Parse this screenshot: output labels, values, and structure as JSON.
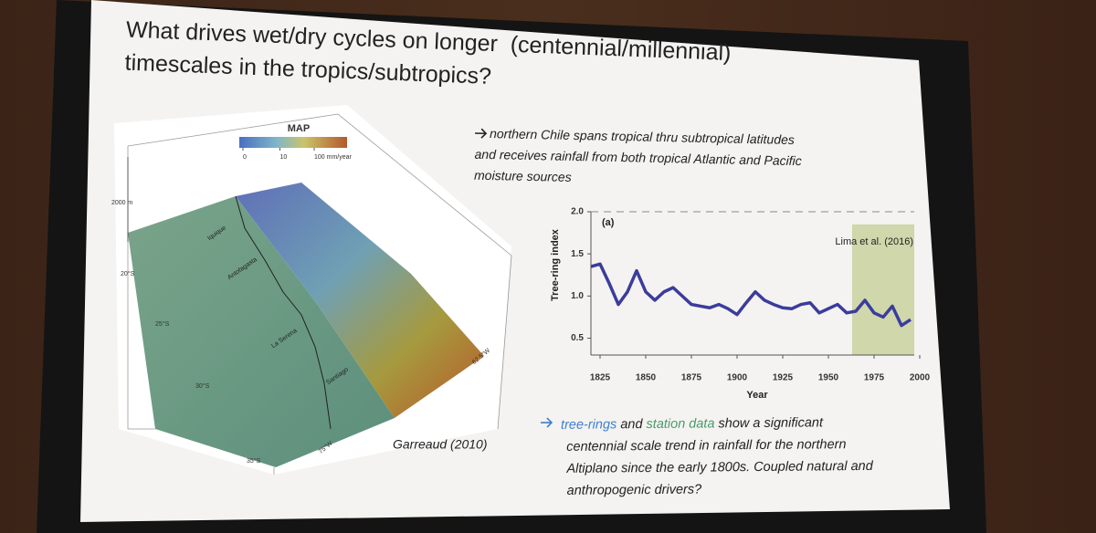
{
  "slide": {
    "title": {
      "lines": [
        "What drives wet/dry cycles on longer  (centennial/millennial)",
        "timescales in the tropics/subtropics?"
      ]
    },
    "bullet_1": {
      "lines": [
        "northern Chile spans tropical thru subtropical latitudes",
        "and receives rainfall from both tropical Atlantic and Pacific",
        "moisture sources"
      ]
    },
    "bullet_2": {
      "lines": [
        [
          {
            "text": "tree-rings",
            "color": "#3f7fd0"
          },
          {
            "text": " and ",
            "color": "#222222"
          },
          {
            "text": "station data",
            "color": "#4a9a6a"
          },
          {
            "text": " show a significant",
            "color": "#222222"
          }
        ],
        [
          {
            "text": "centennial scale trend in rainfall for the northern",
            "color": "#222222"
          }
        ],
        [
          {
            "text": "Altiplano since the early 1800s. Coupled natural and",
            "color": "#222222"
          }
        ],
        [
          {
            "text": "anthropogenic drivers?",
            "color": "#222222"
          }
        ]
      ]
    },
    "map": {
      "colorbar": {
        "title": "MAP",
        "ticks": [
          0,
          10,
          {
            "value": 100,
            "label": "100 mm/year"
          }
        ]
      },
      "elevation_label": "2000 m",
      "latitudes": [
        "20°S",
        "25°S",
        "30°S",
        "35°S"
      ],
      "longitudes": [
        "75°W",
        "62.5°W"
      ],
      "cities": [
        "Iquique",
        "Antofagasta",
        "La Serena",
        "Santiago"
      ],
      "credit": "Garreaud (2010)"
    },
    "tree_ring_chart": {
      "panel_label": "(a)",
      "source": "Lima et al. (2016)",
      "x_label": "Year",
      "y_label": "Tree-ring index",
      "xlim": [
        1820,
        1997
      ],
      "ylim": [
        0.3,
        2.0
      ],
      "xticks": [
        1825,
        1850,
        1875,
        1900,
        1925,
        1950,
        1975,
        2000
      ],
      "yticks": [
        {
          "value": 0.5,
          "label": "0.5"
        },
        {
          "value": 1,
          "label": "1.0"
        },
        {
          "value": 1.5,
          "label": "1.5"
        },
        {
          "value": 2,
          "label": "2.0"
        }
      ],
      "highlight_range": [
        1963,
        1997
      ],
      "x": [
        1820,
        1825,
        1830,
        1835,
        1840,
        1845,
        1850,
        1855,
        1860,
        1865,
        1870,
        1875,
        1880,
        1885,
        1890,
        1895,
        1900,
        1905,
        1910,
        1915,
        1920,
        1925,
        1930,
        1935,
        1940,
        1945,
        1950,
        1955,
        1960,
        1965,
        1970,
        1975,
        1980,
        1985,
        1990,
        1995
      ],
      "series": [
        {
          "color": "#3b3c9c",
          "values": [
            1.35,
            1.38,
            1.15,
            0.9,
            1.05,
            1.3,
            1.05,
            0.95,
            1.05,
            1.1,
            1.0,
            0.9,
            0.88,
            0.86,
            0.9,
            0.85,
            0.78,
            0.92,
            1.05,
            0.95,
            0.9,
            0.86,
            0.85,
            0.9,
            0.92,
            0.8,
            0.85,
            0.9,
            0.8,
            0.82,
            0.95,
            0.8,
            0.75,
            0.88,
            0.65,
            0.72
          ]
        }
      ]
    }
  }
}
